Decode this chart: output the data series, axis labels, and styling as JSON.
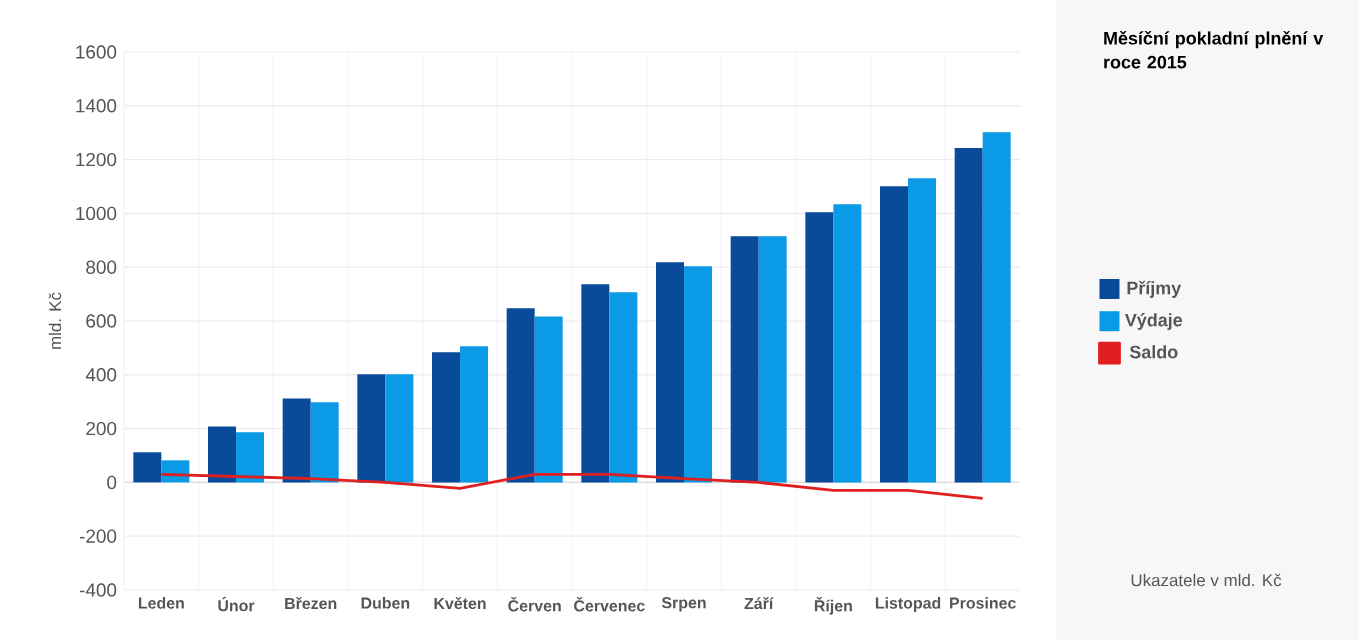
{
  "chart_data": {
    "type": "bar",
    "title": "Měsíční pokladní plnění v roce 2015",
    "ylabel": "mld. Kč",
    "annotations": [
      "Ukazatele v mld. Kč"
    ],
    "categories": [
      "Leden",
      "Únor",
      "Březen",
      "Duben",
      "Květen",
      "Červen",
      "Červenec",
      "Srpen",
      "Září",
      "Říjen",
      "Listopad",
      "Prosinec"
    ],
    "series": [
      {
        "name": "Příjmy",
        "color": "#0a4a9a",
        "values": [
          112,
          208,
          312,
          402,
          484,
          647,
          737,
          818,
          915,
          1004,
          1101,
          1243
        ]
      },
      {
        "name": "Výdaje",
        "color": "#0a9ae6",
        "values": [
          82,
          186,
          298,
          402,
          506,
          617,
          707,
          804,
          915,
          1034,
          1131,
          1302
        ]
      },
      {
        "name": "Saldo",
        "color": "#e02020",
        "type": "line",
        "values": [
          30,
          22,
          14,
          0,
          -22,
          30,
          30,
          14,
          0,
          -30,
          -30,
          -59
        ]
      }
    ],
    "ylim": [
      -400,
      1600
    ],
    "yticks": [
      -400,
      -200,
      0,
      200,
      400,
      600,
      800,
      1000,
      1200,
      1400,
      1600
    ],
    "grid": true,
    "legend": "right"
  }
}
